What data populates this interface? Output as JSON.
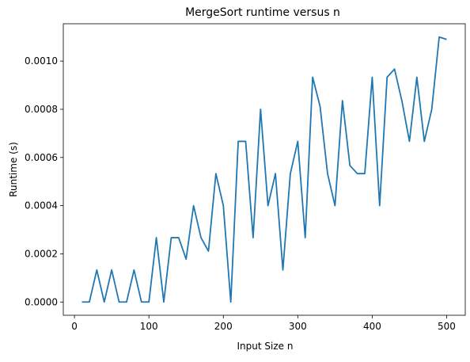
{
  "chart_data": {
    "type": "line",
    "title": "MergeSort runtime versus n",
    "xlabel": "Input Size n",
    "ylabel": "Runtime (s)",
    "xlim": [
      -15,
      525
    ],
    "ylim": [
      -5.5e-05,
      0.001155
    ],
    "x_ticks": [
      0,
      100,
      200,
      300,
      400,
      500
    ],
    "x_tick_labels": [
      "0",
      "100",
      "200",
      "300",
      "400",
      "500"
    ],
    "y_ticks": [
      0,
      0.0002,
      0.0004,
      0.0006,
      0.0008,
      0.001
    ],
    "y_tick_labels": [
      "0.0000",
      "0.0002",
      "0.0004",
      "0.0006",
      "0.0008",
      "0.0010"
    ],
    "grid": false,
    "legend": "none",
    "series": [
      {
        "color": "#1f77b4",
        "x": [
          10,
          20,
          30,
          40,
          50,
          60,
          70,
          80,
          90,
          100,
          110,
          120,
          130,
          140,
          150,
          160,
          170,
          180,
          190,
          200,
          210,
          220,
          230,
          240,
          250,
          260,
          270,
          280,
          290,
          300,
          310,
          320,
          330,
          340,
          350,
          360,
          370,
          380,
          390,
          400,
          410,
          420,
          430,
          440,
          450,
          460,
          470,
          480,
          490,
          500
        ],
        "y": [
          0.0,
          0.0,
          0.000133,
          0.0,
          0.000133,
          0.0,
          0.0,
          0.000133,
          0.0,
          0.0,
          0.000267,
          0.0,
          0.000267,
          0.000267,
          0.000178,
          0.0004,
          0.000267,
          0.000211,
          0.000533,
          0.0004,
          0.0,
          0.000667,
          0.000667,
          0.000267,
          0.0008,
          0.0004,
          0.000533,
          0.000133,
          0.000533,
          0.000667,
          0.000267,
          0.000933,
          0.000811,
          0.000533,
          0.0004,
          0.000836,
          0.000567,
          0.000533,
          0.000533,
          0.000933,
          0.0004,
          0.000933,
          0.000967,
          0.000833,
          0.000667,
          0.000933,
          0.000667,
          0.0008,
          0.0011,
          0.00109
        ]
      }
    ]
  }
}
